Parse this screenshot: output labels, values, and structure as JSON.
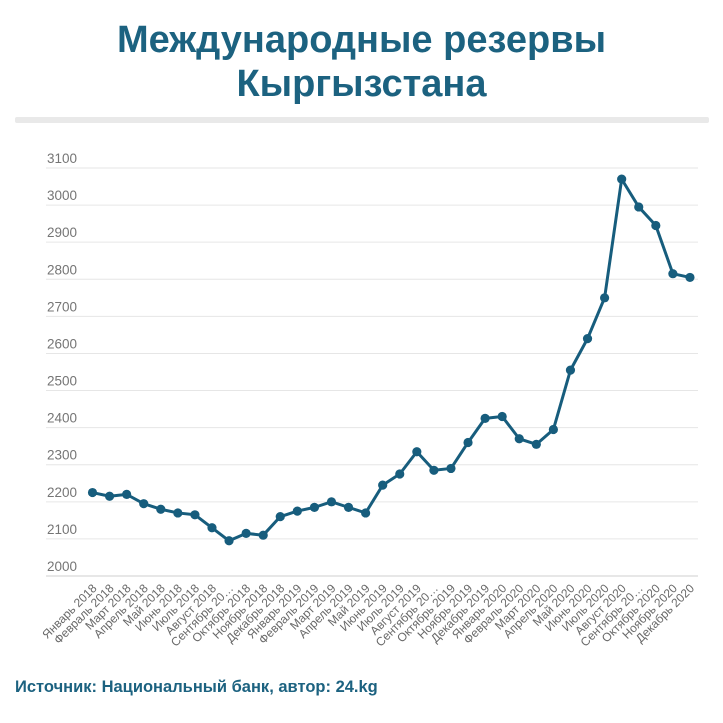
{
  "header": {
    "title_line1": "Международные резервы",
    "title_line2": "Кыргызстана"
  },
  "footer": {
    "source_text": "Источник: Национальный банк, автор: 24.kg"
  },
  "colors": {
    "title_text": "#1c6280",
    "series_line": "#175d7d",
    "point_fill": "#175d7d",
    "gridline": "#e6e6e6",
    "baseline": "#cfcfcf",
    "y_tick_label": "#757575",
    "x_tick_label": "#696969",
    "divider": "#e9e9e9"
  },
  "chart_data": {
    "type": "line",
    "title": "Международные резервы Кыргызстана",
    "series_name": "Международные резервы",
    "legend": "none",
    "grid": "horizontal-only",
    "xlabel": "",
    "ylabel": "",
    "ylim": [
      2000,
      3100
    ],
    "ytick_step": 100,
    "yticks": [
      2000,
      2100,
      2200,
      2300,
      2400,
      2500,
      2600,
      2700,
      2800,
      2900,
      3000,
      3100
    ],
    "x": [
      "Январь 2018",
      "Февраль 2018",
      "Март 2018",
      "Апрель 2018",
      "Май 2018",
      "Июнь 2018",
      "Июль 2018",
      "Август 2018",
      "Сентябрь 20…",
      "Октябрь 2018",
      "Ноябрь 2018",
      "Декабрь 2018",
      "Январь 2019",
      "Февраль 2019",
      "Март 2019",
      "Апрель 2019",
      "Май 2019",
      "Июнь 2019",
      "Июль 2019",
      "Август 2019",
      "Сентябрь 20…",
      "Октябрь 2019",
      "Ноябрь 2019",
      "Декабрь 2019",
      "Январь 2020",
      "Февраль 2020",
      "Март 2020",
      "Апрель 2020",
      "Май 2020",
      "Июнь 2020",
      "Июль 2020",
      "Август 2020",
      "Сентябрь 20…",
      "Октябрь 2020",
      "Ноябрь 2020",
      "Декабрь 2020"
    ],
    "values": [
      2225,
      2215,
      2220,
      2195,
      2180,
      2170,
      2165,
      2130,
      2095,
      2115,
      2110,
      2160,
      2175,
      2185,
      2200,
      2185,
      2170,
      2245,
      2275,
      2335,
      2285,
      2290,
      2360,
      2425,
      2430,
      2370,
      2355,
      2395,
      2555,
      2640,
      2750,
      3070,
      2995,
      2945,
      2815,
      2805
    ]
  }
}
